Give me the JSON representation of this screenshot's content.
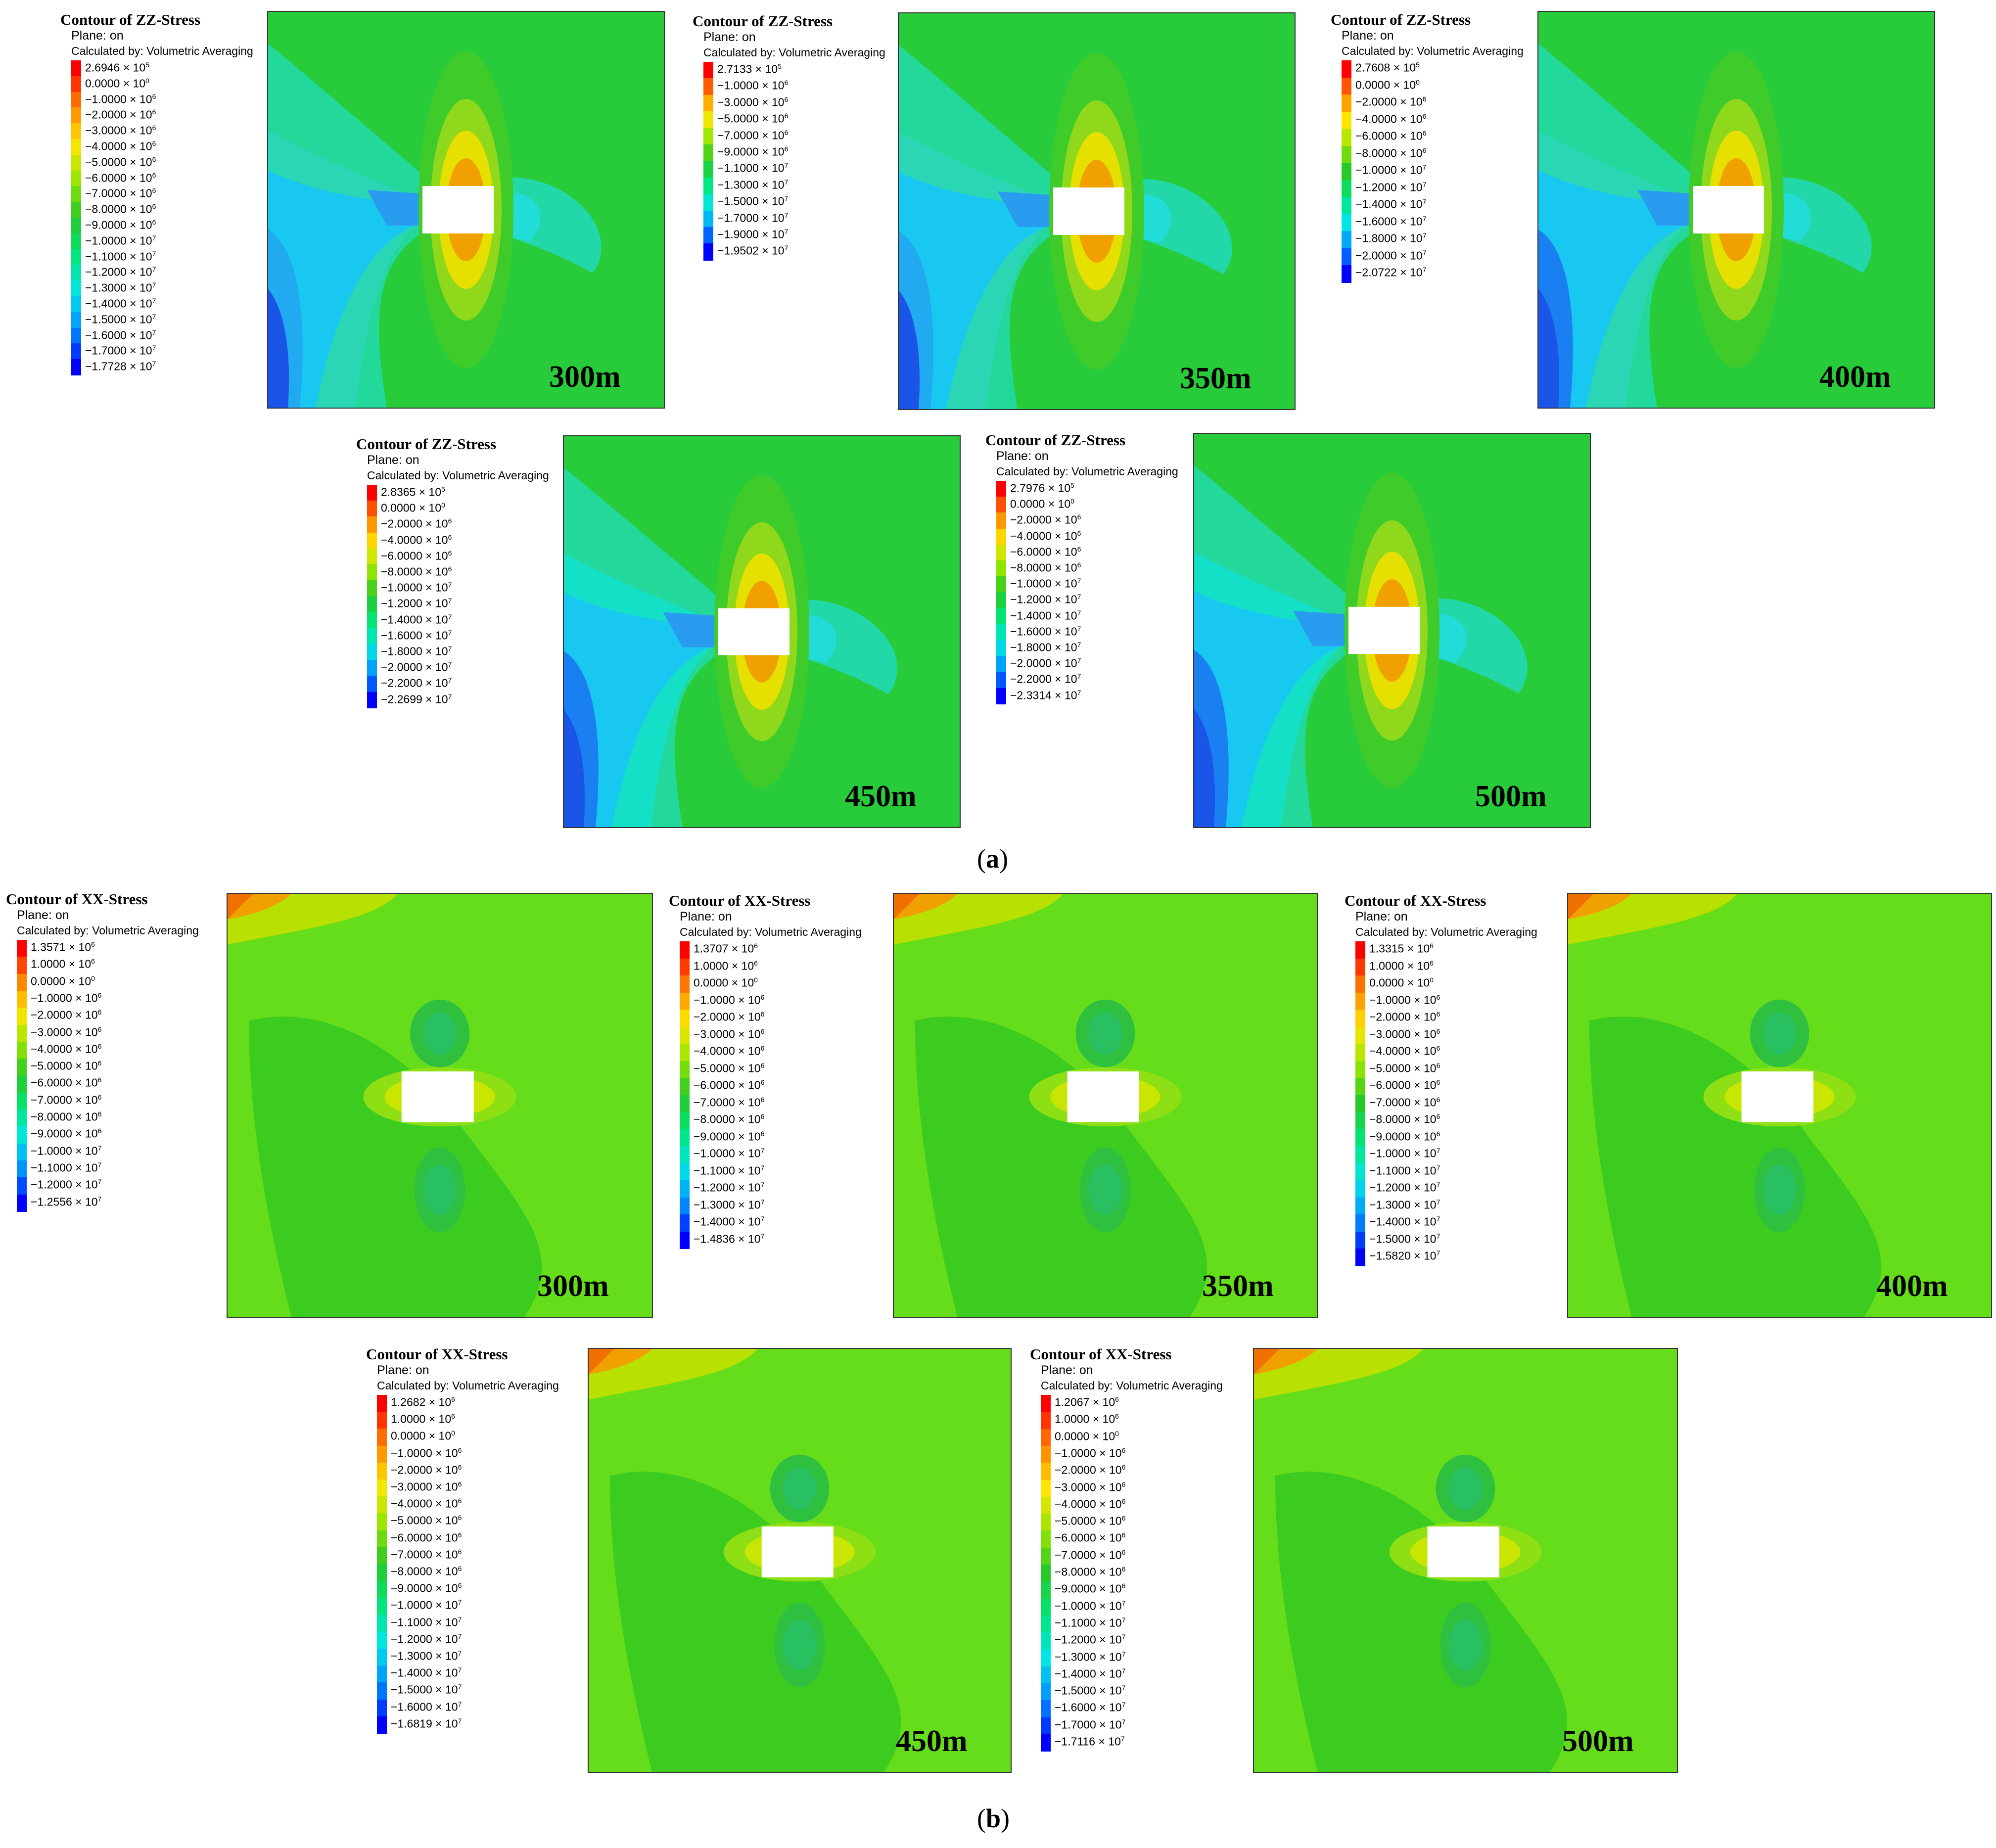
{
  "legend_common": {
    "plane_label": "Plane: on",
    "calc_label": "Calculated by: Volumetric Averaging"
  },
  "figure_a": {
    "caption_open": "(",
    "caption_letter": "a",
    "caption_close": ")",
    "title": "Contour of ZZ-Stress",
    "panels": [
      {
        "depth": "300m",
        "values": [
          "2.6946 × 10⁵",
          "0.0000 × 10⁰",
          "−1.0000 × 10⁶",
          "−2.0000 × 10⁶",
          "−3.0000 × 10⁶",
          "−4.0000 × 10⁶",
          "−5.0000 × 10⁶",
          "−6.0000 × 10⁶",
          "−7.0000 × 10⁶",
          "−8.0000 × 10⁶",
          "−9.0000 × 10⁶",
          "−1.0000 × 10⁷",
          "−1.1000 × 10⁷",
          "−1.2000 × 10⁷",
          "−1.3000 × 10⁷",
          "−1.4000 × 10⁷",
          "−1.5000 × 10⁷",
          "−1.6000 × 10⁷",
          "−1.7000 × 10⁷",
          "−1.7728 × 10⁷"
        ]
      },
      {
        "depth": "350m",
        "values": [
          "2.7133 × 10⁵",
          "−1.0000 × 10⁶",
          "−3.0000 × 10⁶",
          "−5.0000 × 10⁶",
          "−7.0000 × 10⁶",
          "−9.0000 × 10⁶",
          "−1.1000 × 10⁷",
          "−1.3000 × 10⁷",
          "−1.5000 × 10⁷",
          "−1.7000 × 10⁷",
          "−1.9000 × 10⁷",
          "−1.9502 × 10⁷"
        ]
      },
      {
        "depth": "400m",
        "values": [
          "2.7608 × 10⁵",
          "0.0000 × 10⁰",
          "−2.0000 × 10⁶",
          "−4.0000 × 10⁶",
          "−6.0000 × 10⁶",
          "−8.0000 × 10⁶",
          "−1.0000 × 10⁷",
          "−1.2000 × 10⁷",
          "−1.4000 × 10⁷",
          "−1.6000 × 10⁷",
          "−1.8000 × 10⁷",
          "−2.0000 × 10⁷",
          "−2.0722 × 10⁷"
        ]
      },
      {
        "depth": "450m",
        "values": [
          "2.8365 × 10⁵",
          "0.0000 × 10⁰",
          "−2.0000 × 10⁶",
          "−4.0000 × 10⁶",
          "−6.0000 × 10⁶",
          "−8.0000 × 10⁶",
          "−1.0000 × 10⁷",
          "−1.2000 × 10⁷",
          "−1.4000 × 10⁷",
          "−1.6000 × 10⁷",
          "−1.8000 × 10⁷",
          "−2.0000 × 10⁷",
          "−2.2000 × 10⁷",
          "−2.2699 × 10⁷"
        ]
      },
      {
        "depth": "500m",
        "values": [
          "2.7976 × 10⁵",
          "0.0000 × 10⁰",
          "−2.0000 × 10⁶",
          "−4.0000 × 10⁶",
          "−6.0000 × 10⁶",
          "−8.0000 × 10⁶",
          "−1.0000 × 10⁷",
          "−1.2000 × 10⁷",
          "−1.4000 × 10⁷",
          "−1.6000 × 10⁷",
          "−1.8000 × 10⁷",
          "−2.0000 × 10⁷",
          "−2.2000 × 10⁷",
          "−2.3314 × 10⁷"
        ]
      }
    ]
  },
  "figure_b": {
    "caption_open": "(",
    "caption_letter": "b",
    "caption_close": ")",
    "title": "Contour of XX-Stress",
    "panels": [
      {
        "depth": "300m",
        "values": [
          "1.3571 × 10⁶",
          "1.0000 × 10⁶",
          "0.0000 × 10⁰",
          "−1.0000 × 10⁶",
          "−2.0000 × 10⁶",
          "−3.0000 × 10⁶",
          "−4.0000 × 10⁶",
          "−5.0000 × 10⁶",
          "−6.0000 × 10⁶",
          "−7.0000 × 10⁶",
          "−8.0000 × 10⁶",
          "−9.0000 × 10⁶",
          "−1.0000 × 10⁷",
          "−1.1000 × 10⁷",
          "−1.2000 × 10⁷",
          "−1.2556 × 10⁷"
        ]
      },
      {
        "depth": "350m",
        "values": [
          "1.3707 × 10⁶",
          "1.0000 × 10⁶",
          "0.0000 × 10⁰",
          "−1.0000 × 10⁶",
          "−2.0000 × 10⁶",
          "−3.0000 × 10⁶",
          "−4.0000 × 10⁶",
          "−5.0000 × 10⁶",
          "−6.0000 × 10⁶",
          "−7.0000 × 10⁶",
          "−8.0000 × 10⁶",
          "−9.0000 × 10⁶",
          "−1.0000 × 10⁷",
          "−1.1000 × 10⁷",
          "−1.2000 × 10⁷",
          "−1.3000 × 10⁷",
          "−1.4000 × 10⁷",
          "−1.4836 × 10⁷"
        ]
      },
      {
        "depth": "400m",
        "values": [
          "1.3315 × 10⁶",
          "1.0000 × 10⁶",
          "0.0000 × 10⁰",
          "−1.0000 × 10⁶",
          "−2.0000 × 10⁶",
          "−3.0000 × 10⁶",
          "−4.0000 × 10⁶",
          "−5.0000 × 10⁶",
          "−6.0000 × 10⁶",
          "−7.0000 × 10⁶",
          "−8.0000 × 10⁶",
          "−9.0000 × 10⁶",
          "−1.0000 × 10⁷",
          "−1.1000 × 10⁷",
          "−1.2000 × 10⁷",
          "−1.3000 × 10⁷",
          "−1.4000 × 10⁷",
          "−1.5000 × 10⁷",
          "−1.5820 × 10⁷"
        ]
      },
      {
        "depth": "450m",
        "values": [
          "1.2682 × 10⁶",
          "1.0000 × 10⁶",
          "0.0000 × 10⁰",
          "−1.0000 × 10⁶",
          "−2.0000 × 10⁶",
          "−3.0000 × 10⁶",
          "−4.0000 × 10⁶",
          "−5.0000 × 10⁶",
          "−6.0000 × 10⁶",
          "−7.0000 × 10⁶",
          "−8.0000 × 10⁶",
          "−9.0000 × 10⁶",
          "−1.0000 × 10⁷",
          "−1.1000 × 10⁷",
          "−1.2000 × 10⁷",
          "−1.3000 × 10⁷",
          "−1.4000 × 10⁷",
          "−1.5000 × 10⁷",
          "−1.6000 × 10⁷",
          "−1.6819 × 10⁷"
        ]
      },
      {
        "depth": "500m",
        "values": [
          "1.2067 × 10⁶",
          "1.0000 × 10⁶",
          "0.0000 × 10⁰",
          "−1.0000 × 10⁶",
          "−2.0000 × 10⁶",
          "−3.0000 × 10⁶",
          "−4.0000 × 10⁶",
          "−5.0000 × 10⁶",
          "−6.0000 × 10⁶",
          "−7.0000 × 10⁶",
          "−8.0000 × 10⁶",
          "−9.0000 × 10⁶",
          "−1.0000 × 10⁷",
          "−1.1000 × 10⁷",
          "−1.2000 × 10⁷",
          "−1.3000 × 10⁷",
          "−1.4000 × 10⁷",
          "−1.5000 × 10⁷",
          "−1.6000 × 10⁷",
          "−1.7000 × 10⁷",
          "−1.7116 × 10⁷"
        ]
      }
    ]
  }
}
